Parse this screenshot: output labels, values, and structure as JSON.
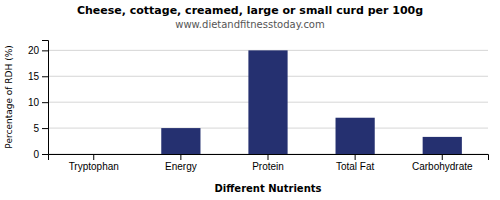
{
  "chart_data": {
    "type": "bar",
    "title": "Cheese, cottage, creamed, large or small curd per 100g",
    "subtitle": "www.dietandfitnesstoday.com",
    "xlabel": "Different Nutrients",
    "ylabel": "Percentage of RDH (%)",
    "categories": [
      "Tryptophan",
      "Energy",
      "Protein",
      "Total Fat",
      "Carbohydrate"
    ],
    "values": [
      0,
      5,
      20,
      7,
      3.3
    ],
    "color": "#253070",
    "ylim": [
      0,
      22
    ],
    "yticks": [
      0,
      5,
      10,
      15,
      20
    ],
    "grid": true
  }
}
